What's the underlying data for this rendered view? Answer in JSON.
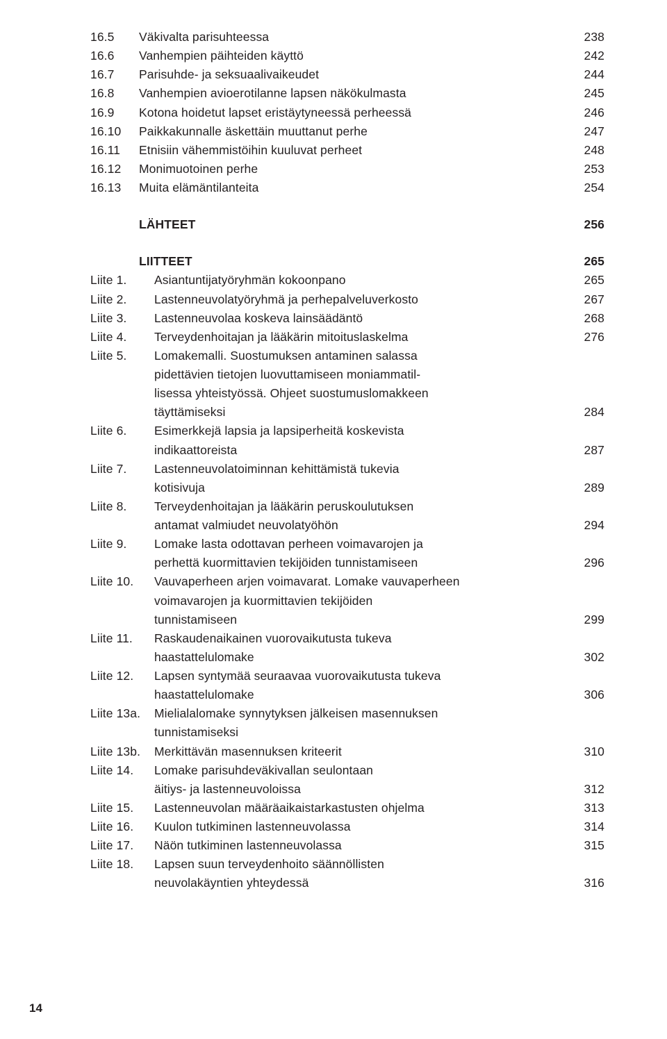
{
  "chapter16": [
    {
      "num": "16.5",
      "label": "Väkivalta parisuhteessa",
      "page": "238"
    },
    {
      "num": "16.6",
      "label": "Vanhempien päihteiden käyttö",
      "page": "242"
    },
    {
      "num": "16.7",
      "label": "Parisuhde- ja seksuaalivaikeudet",
      "page": "244"
    },
    {
      "num": "16.8",
      "label": "Vanhempien avioerotilanne lapsen näkökulmasta",
      "page": "245"
    },
    {
      "num": "16.9",
      "label": "Kotona hoidetut lapset eristäytyneessä perheessä",
      "page": "246"
    },
    {
      "num": "16.10",
      "label": "Paikkakunnalle äskettäin muuttanut perhe",
      "page": "247"
    },
    {
      "num": "16.11",
      "label": "Etnisiin vähemmistöihin kuuluvat perheet",
      "page": "248"
    },
    {
      "num": "16.12",
      "label": "Monimuotoinen perhe",
      "page": "253"
    },
    {
      "num": "16.13",
      "label": "Muita elämäntilanteita",
      "page": "254"
    }
  ],
  "lahteet": {
    "label": "LÄHTEET",
    "page": "256"
  },
  "liitteet_head": {
    "label": "LIITTEET",
    "page": "265"
  },
  "liitteet": [
    {
      "num": "Liite 1.",
      "lines": [
        "Asiantuntijatyöryhmän kokoonpano"
      ],
      "page": "265"
    },
    {
      "num": "Liite 2.",
      "lines": [
        "Lastenneuvolatyöryhmä ja perhepalveluverkosto"
      ],
      "page": "267"
    },
    {
      "num": "Liite 3.",
      "lines": [
        "Lastenneuvolaa koskeva lainsäädäntö"
      ],
      "page": "268"
    },
    {
      "num": "Liite 4.",
      "lines": [
        "Terveydenhoitajan ja lääkärin mitoituslaskelma"
      ],
      "page": "276"
    },
    {
      "num": "Liite 5.",
      "lines": [
        "Lomakemalli. Suostumuksen antaminen salassa",
        "pidettävien tietojen luovuttamiseen moniammatil-",
        "lisessa yhteistyössä. Ohjeet suostumuslomakkeen",
        "täyttämiseksi"
      ],
      "page": "284"
    },
    {
      "num": "Liite 6.",
      "lines": [
        "Esimerkkejä lapsia ja lapsiperheitä koskevista",
        "indikaattoreista"
      ],
      "page": "287"
    },
    {
      "num": "Liite 7.",
      "lines": [
        "Lastenneuvolatoiminnan kehittämistä tukevia",
        "kotisivuja"
      ],
      "page": "289"
    },
    {
      "num": "Liite 8.",
      "lines": [
        "Terveydenhoitajan ja lääkärin peruskoulutuksen",
        "antamat valmiudet neuvolatyöhön"
      ],
      "page": "294"
    },
    {
      "num": "Liite 9.",
      "lines": [
        "Lomake lasta odottavan perheen voimavarojen ja",
        "perhettä kuormittavien tekijöiden tunnistamiseen"
      ],
      "page": "296"
    },
    {
      "num": "Liite 10.",
      "lines": [
        "Vauvaperheen arjen voimavarat. Lomake vauvaperheen",
        "voimavarojen ja kuormittavien tekijöiden",
        "tunnistamiseen"
      ],
      "page": "299"
    },
    {
      "num": "Liite 11.",
      "lines": [
        "Raskaudenaikainen vuorovaikutusta tukeva",
        "haastattelulomake"
      ],
      "page": "302"
    },
    {
      "num": "Liite 12.",
      "lines": [
        "Lapsen syntymää seuraavaa vuorovaikutusta tukeva",
        "haastattelulomake"
      ],
      "page": "306"
    },
    {
      "num": "Liite 13a.",
      "lines": [
        "Mielialalomake synnytyksen jälkeisen masennuksen",
        "tunnistamiseksi"
      ],
      "page": ""
    },
    {
      "num": "Liite 13b.",
      "lines": [
        "Merkittävän masennuksen kriteerit"
      ],
      "page": "310"
    },
    {
      "num": "Liite 14.",
      "lines": [
        "Lomake parisuhdeväkivallan seulontaan",
        "äitiys- ja lastenneuvoloissa"
      ],
      "page": "312"
    },
    {
      "num": "Liite 15.",
      "lines": [
        "Lastenneuvolan määräaikaistarkastusten ohjelma"
      ],
      "page": "313"
    },
    {
      "num": "Liite 16.",
      "lines": [
        "Kuulon tutkiminen lastenneuvolassa"
      ],
      "page": "314"
    },
    {
      "num": "Liite 17.",
      "lines": [
        "Näön tutkiminen lastenneuvolassa"
      ],
      "page": "315"
    },
    {
      "num": "Liite 18.",
      "lines": [
        "Lapsen suun terveydenhoito säännöllisten",
        "neuvolakäyntien yhteydessä"
      ],
      "page": "316"
    }
  ],
  "page_number": "14"
}
